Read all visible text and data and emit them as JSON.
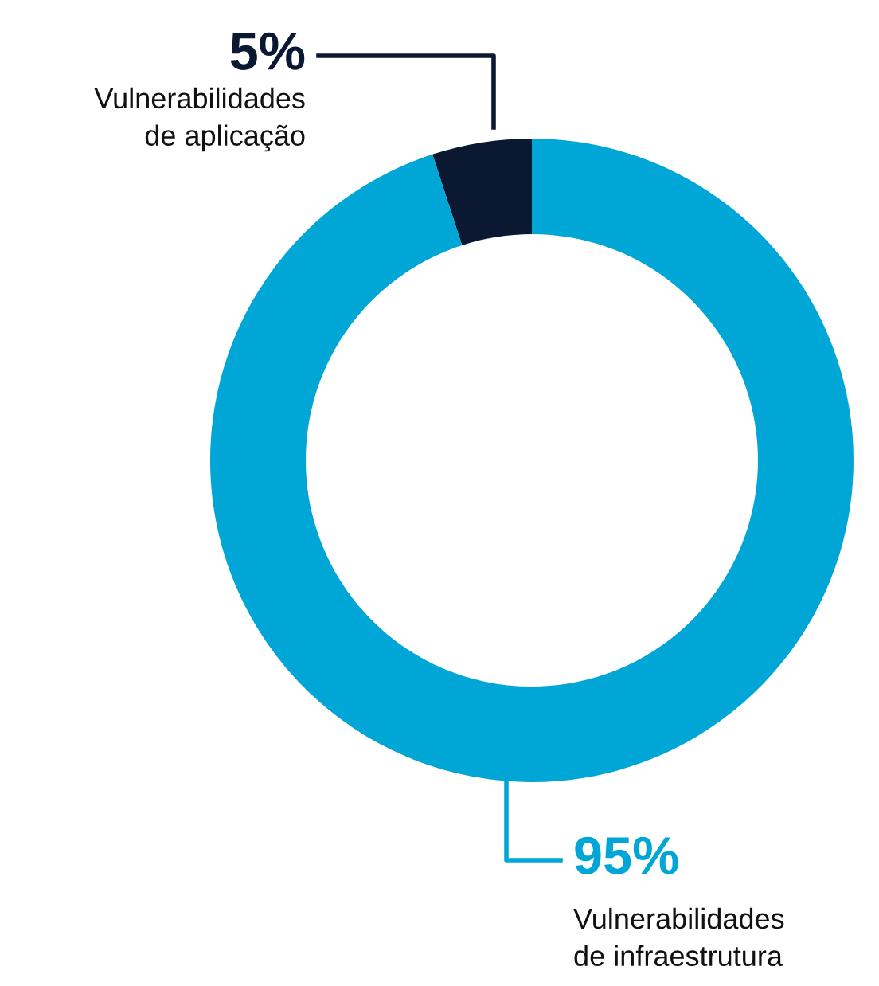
{
  "chart_data": {
    "type": "donut",
    "categories": [
      "Vulnerabilidades\nde aplicação",
      "Vulnerabilidades\nde infraestrutura"
    ],
    "values": [
      5,
      95
    ],
    "colors": [
      "#0b1832",
      "#00a6d6"
    ],
    "value_labels": [
      "5%",
      "95%"
    ],
    "legend": false
  }
}
